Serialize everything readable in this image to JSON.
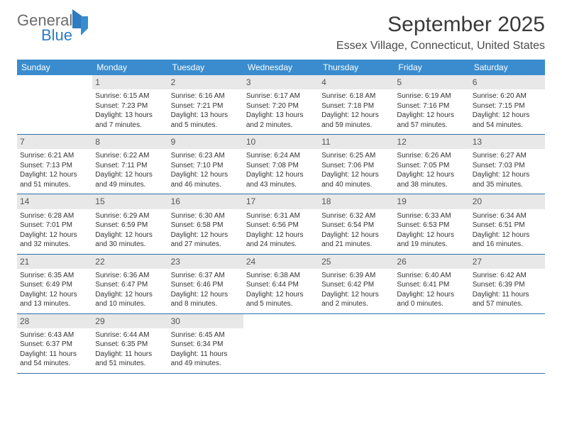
{
  "logo": {
    "word1": "General",
    "word2": "Blue"
  },
  "title": "September 2025",
  "location": "Essex Village, Connecticut, United States",
  "colors": {
    "header_bg": "#3a8ccf",
    "header_text": "#ffffff",
    "daynum_bg": "#e8e8e8",
    "week_border": "#2f6fa8",
    "body_text": "#333333",
    "title_text": "#3a3a3a"
  },
  "day_headers": [
    "Sunday",
    "Monday",
    "Tuesday",
    "Wednesday",
    "Thursday",
    "Friday",
    "Saturday"
  ],
  "weeks": [
    [
      {
        "n": "",
        "sr": "",
        "ss": "",
        "dl1": "",
        "dl2": ""
      },
      {
        "n": "1",
        "sr": "Sunrise: 6:15 AM",
        "ss": "Sunset: 7:23 PM",
        "dl1": "Daylight: 13 hours",
        "dl2": "and 7 minutes."
      },
      {
        "n": "2",
        "sr": "Sunrise: 6:16 AM",
        "ss": "Sunset: 7:21 PM",
        "dl1": "Daylight: 13 hours",
        "dl2": "and 5 minutes."
      },
      {
        "n": "3",
        "sr": "Sunrise: 6:17 AM",
        "ss": "Sunset: 7:20 PM",
        "dl1": "Daylight: 13 hours",
        "dl2": "and 2 minutes."
      },
      {
        "n": "4",
        "sr": "Sunrise: 6:18 AM",
        "ss": "Sunset: 7:18 PM",
        "dl1": "Daylight: 12 hours",
        "dl2": "and 59 minutes."
      },
      {
        "n": "5",
        "sr": "Sunrise: 6:19 AM",
        "ss": "Sunset: 7:16 PM",
        "dl1": "Daylight: 12 hours",
        "dl2": "and 57 minutes."
      },
      {
        "n": "6",
        "sr": "Sunrise: 6:20 AM",
        "ss": "Sunset: 7:15 PM",
        "dl1": "Daylight: 12 hours",
        "dl2": "and 54 minutes."
      }
    ],
    [
      {
        "n": "7",
        "sr": "Sunrise: 6:21 AM",
        "ss": "Sunset: 7:13 PM",
        "dl1": "Daylight: 12 hours",
        "dl2": "and 51 minutes."
      },
      {
        "n": "8",
        "sr": "Sunrise: 6:22 AM",
        "ss": "Sunset: 7:11 PM",
        "dl1": "Daylight: 12 hours",
        "dl2": "and 49 minutes."
      },
      {
        "n": "9",
        "sr": "Sunrise: 6:23 AM",
        "ss": "Sunset: 7:10 PM",
        "dl1": "Daylight: 12 hours",
        "dl2": "and 46 minutes."
      },
      {
        "n": "10",
        "sr": "Sunrise: 6:24 AM",
        "ss": "Sunset: 7:08 PM",
        "dl1": "Daylight: 12 hours",
        "dl2": "and 43 minutes."
      },
      {
        "n": "11",
        "sr": "Sunrise: 6:25 AM",
        "ss": "Sunset: 7:06 PM",
        "dl1": "Daylight: 12 hours",
        "dl2": "and 40 minutes."
      },
      {
        "n": "12",
        "sr": "Sunrise: 6:26 AM",
        "ss": "Sunset: 7:05 PM",
        "dl1": "Daylight: 12 hours",
        "dl2": "and 38 minutes."
      },
      {
        "n": "13",
        "sr": "Sunrise: 6:27 AM",
        "ss": "Sunset: 7:03 PM",
        "dl1": "Daylight: 12 hours",
        "dl2": "and 35 minutes."
      }
    ],
    [
      {
        "n": "14",
        "sr": "Sunrise: 6:28 AM",
        "ss": "Sunset: 7:01 PM",
        "dl1": "Daylight: 12 hours",
        "dl2": "and 32 minutes."
      },
      {
        "n": "15",
        "sr": "Sunrise: 6:29 AM",
        "ss": "Sunset: 6:59 PM",
        "dl1": "Daylight: 12 hours",
        "dl2": "and 30 minutes."
      },
      {
        "n": "16",
        "sr": "Sunrise: 6:30 AM",
        "ss": "Sunset: 6:58 PM",
        "dl1": "Daylight: 12 hours",
        "dl2": "and 27 minutes."
      },
      {
        "n": "17",
        "sr": "Sunrise: 6:31 AM",
        "ss": "Sunset: 6:56 PM",
        "dl1": "Daylight: 12 hours",
        "dl2": "and 24 minutes."
      },
      {
        "n": "18",
        "sr": "Sunrise: 6:32 AM",
        "ss": "Sunset: 6:54 PM",
        "dl1": "Daylight: 12 hours",
        "dl2": "and 21 minutes."
      },
      {
        "n": "19",
        "sr": "Sunrise: 6:33 AM",
        "ss": "Sunset: 6:53 PM",
        "dl1": "Daylight: 12 hours",
        "dl2": "and 19 minutes."
      },
      {
        "n": "20",
        "sr": "Sunrise: 6:34 AM",
        "ss": "Sunset: 6:51 PM",
        "dl1": "Daylight: 12 hours",
        "dl2": "and 16 minutes."
      }
    ],
    [
      {
        "n": "21",
        "sr": "Sunrise: 6:35 AM",
        "ss": "Sunset: 6:49 PM",
        "dl1": "Daylight: 12 hours",
        "dl2": "and 13 minutes."
      },
      {
        "n": "22",
        "sr": "Sunrise: 6:36 AM",
        "ss": "Sunset: 6:47 PM",
        "dl1": "Daylight: 12 hours",
        "dl2": "and 10 minutes."
      },
      {
        "n": "23",
        "sr": "Sunrise: 6:37 AM",
        "ss": "Sunset: 6:46 PM",
        "dl1": "Daylight: 12 hours",
        "dl2": "and 8 minutes."
      },
      {
        "n": "24",
        "sr": "Sunrise: 6:38 AM",
        "ss": "Sunset: 6:44 PM",
        "dl1": "Daylight: 12 hours",
        "dl2": "and 5 minutes."
      },
      {
        "n": "25",
        "sr": "Sunrise: 6:39 AM",
        "ss": "Sunset: 6:42 PM",
        "dl1": "Daylight: 12 hours",
        "dl2": "and 2 minutes."
      },
      {
        "n": "26",
        "sr": "Sunrise: 6:40 AM",
        "ss": "Sunset: 6:41 PM",
        "dl1": "Daylight: 12 hours",
        "dl2": "and 0 minutes."
      },
      {
        "n": "27",
        "sr": "Sunrise: 6:42 AM",
        "ss": "Sunset: 6:39 PM",
        "dl1": "Daylight: 11 hours",
        "dl2": "and 57 minutes."
      }
    ],
    [
      {
        "n": "28",
        "sr": "Sunrise: 6:43 AM",
        "ss": "Sunset: 6:37 PM",
        "dl1": "Daylight: 11 hours",
        "dl2": "and 54 minutes."
      },
      {
        "n": "29",
        "sr": "Sunrise: 6:44 AM",
        "ss": "Sunset: 6:35 PM",
        "dl1": "Daylight: 11 hours",
        "dl2": "and 51 minutes."
      },
      {
        "n": "30",
        "sr": "Sunrise: 6:45 AM",
        "ss": "Sunset: 6:34 PM",
        "dl1": "Daylight: 11 hours",
        "dl2": "and 49 minutes."
      },
      {
        "n": "",
        "sr": "",
        "ss": "",
        "dl1": "",
        "dl2": ""
      },
      {
        "n": "",
        "sr": "",
        "ss": "",
        "dl1": "",
        "dl2": ""
      },
      {
        "n": "",
        "sr": "",
        "ss": "",
        "dl1": "",
        "dl2": ""
      },
      {
        "n": "",
        "sr": "",
        "ss": "",
        "dl1": "",
        "dl2": ""
      }
    ]
  ]
}
